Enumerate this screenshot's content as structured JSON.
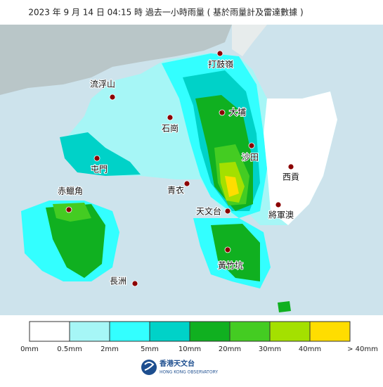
{
  "title": "2023 年 9 月 14 日 04:15 時 過去一小時雨量 ( 基於雨量計及雷達數據 )",
  "places": [
    "打鼓嶺",
    "流浮山",
    "大埔",
    "石崗",
    "沙田",
    "屯門",
    "西貢",
    "青衣",
    "赤鱲角",
    "將軍澳",
    "天文台",
    "黃竹坑",
    "長洲"
  ],
  "legend": {
    "colors": [
      "#ffffff",
      "#a6f6f6",
      "#33ffff",
      "#00d2c8",
      "#10b020",
      "#44cc22",
      "#a4e000",
      "#ffdd00"
    ],
    "labels": [
      "0mm",
      "0.5mm",
      "2mm",
      "5mm",
      "10mm",
      "20mm",
      "30mm",
      "40mm",
      "> 40mm"
    ]
  },
  "logo": {
    "zh": "香港天文台",
    "en": "HONG KONG OBSERVATORY"
  }
}
